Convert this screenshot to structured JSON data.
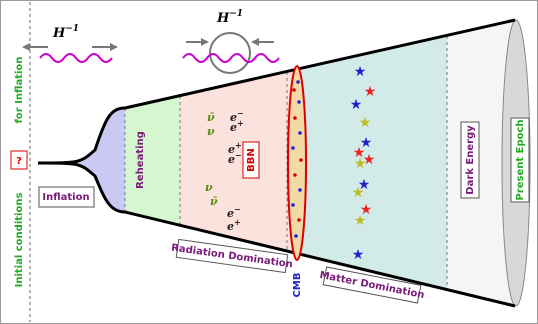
{
  "hubble_radius": [
    {
      "base": "H",
      "exponent": "−1"
    },
    {
      "base": "H",
      "exponent": "−1"
    }
  ],
  "initial": {
    "question": "?",
    "line_1": "Initial conditions",
    "line_2": "for Inflation"
  },
  "eras": {
    "inflation": "Inflation",
    "reheating": "Reheating",
    "bbn": "BBN",
    "radiation": "Radiation Domination",
    "cmb": "CMB",
    "matter": "Matter Domination",
    "dark_energy": "Dark Energy",
    "present": "Present Epoch"
  },
  "particles": [
    {
      "symbol": "ν̄"
    },
    {
      "symbol": "ν"
    },
    {
      "symbol": "e",
      "charge": "−"
    },
    {
      "symbol": "e",
      "charge": "+"
    },
    {
      "symbol": "e",
      "charge": "+"
    },
    {
      "symbol": "e",
      "charge": "−"
    },
    {
      "symbol": "ν"
    },
    {
      "symbol": "ν̄"
    },
    {
      "symbol": "e",
      "charge": "−"
    },
    {
      "symbol": "e",
      "charge": "+"
    }
  ]
}
